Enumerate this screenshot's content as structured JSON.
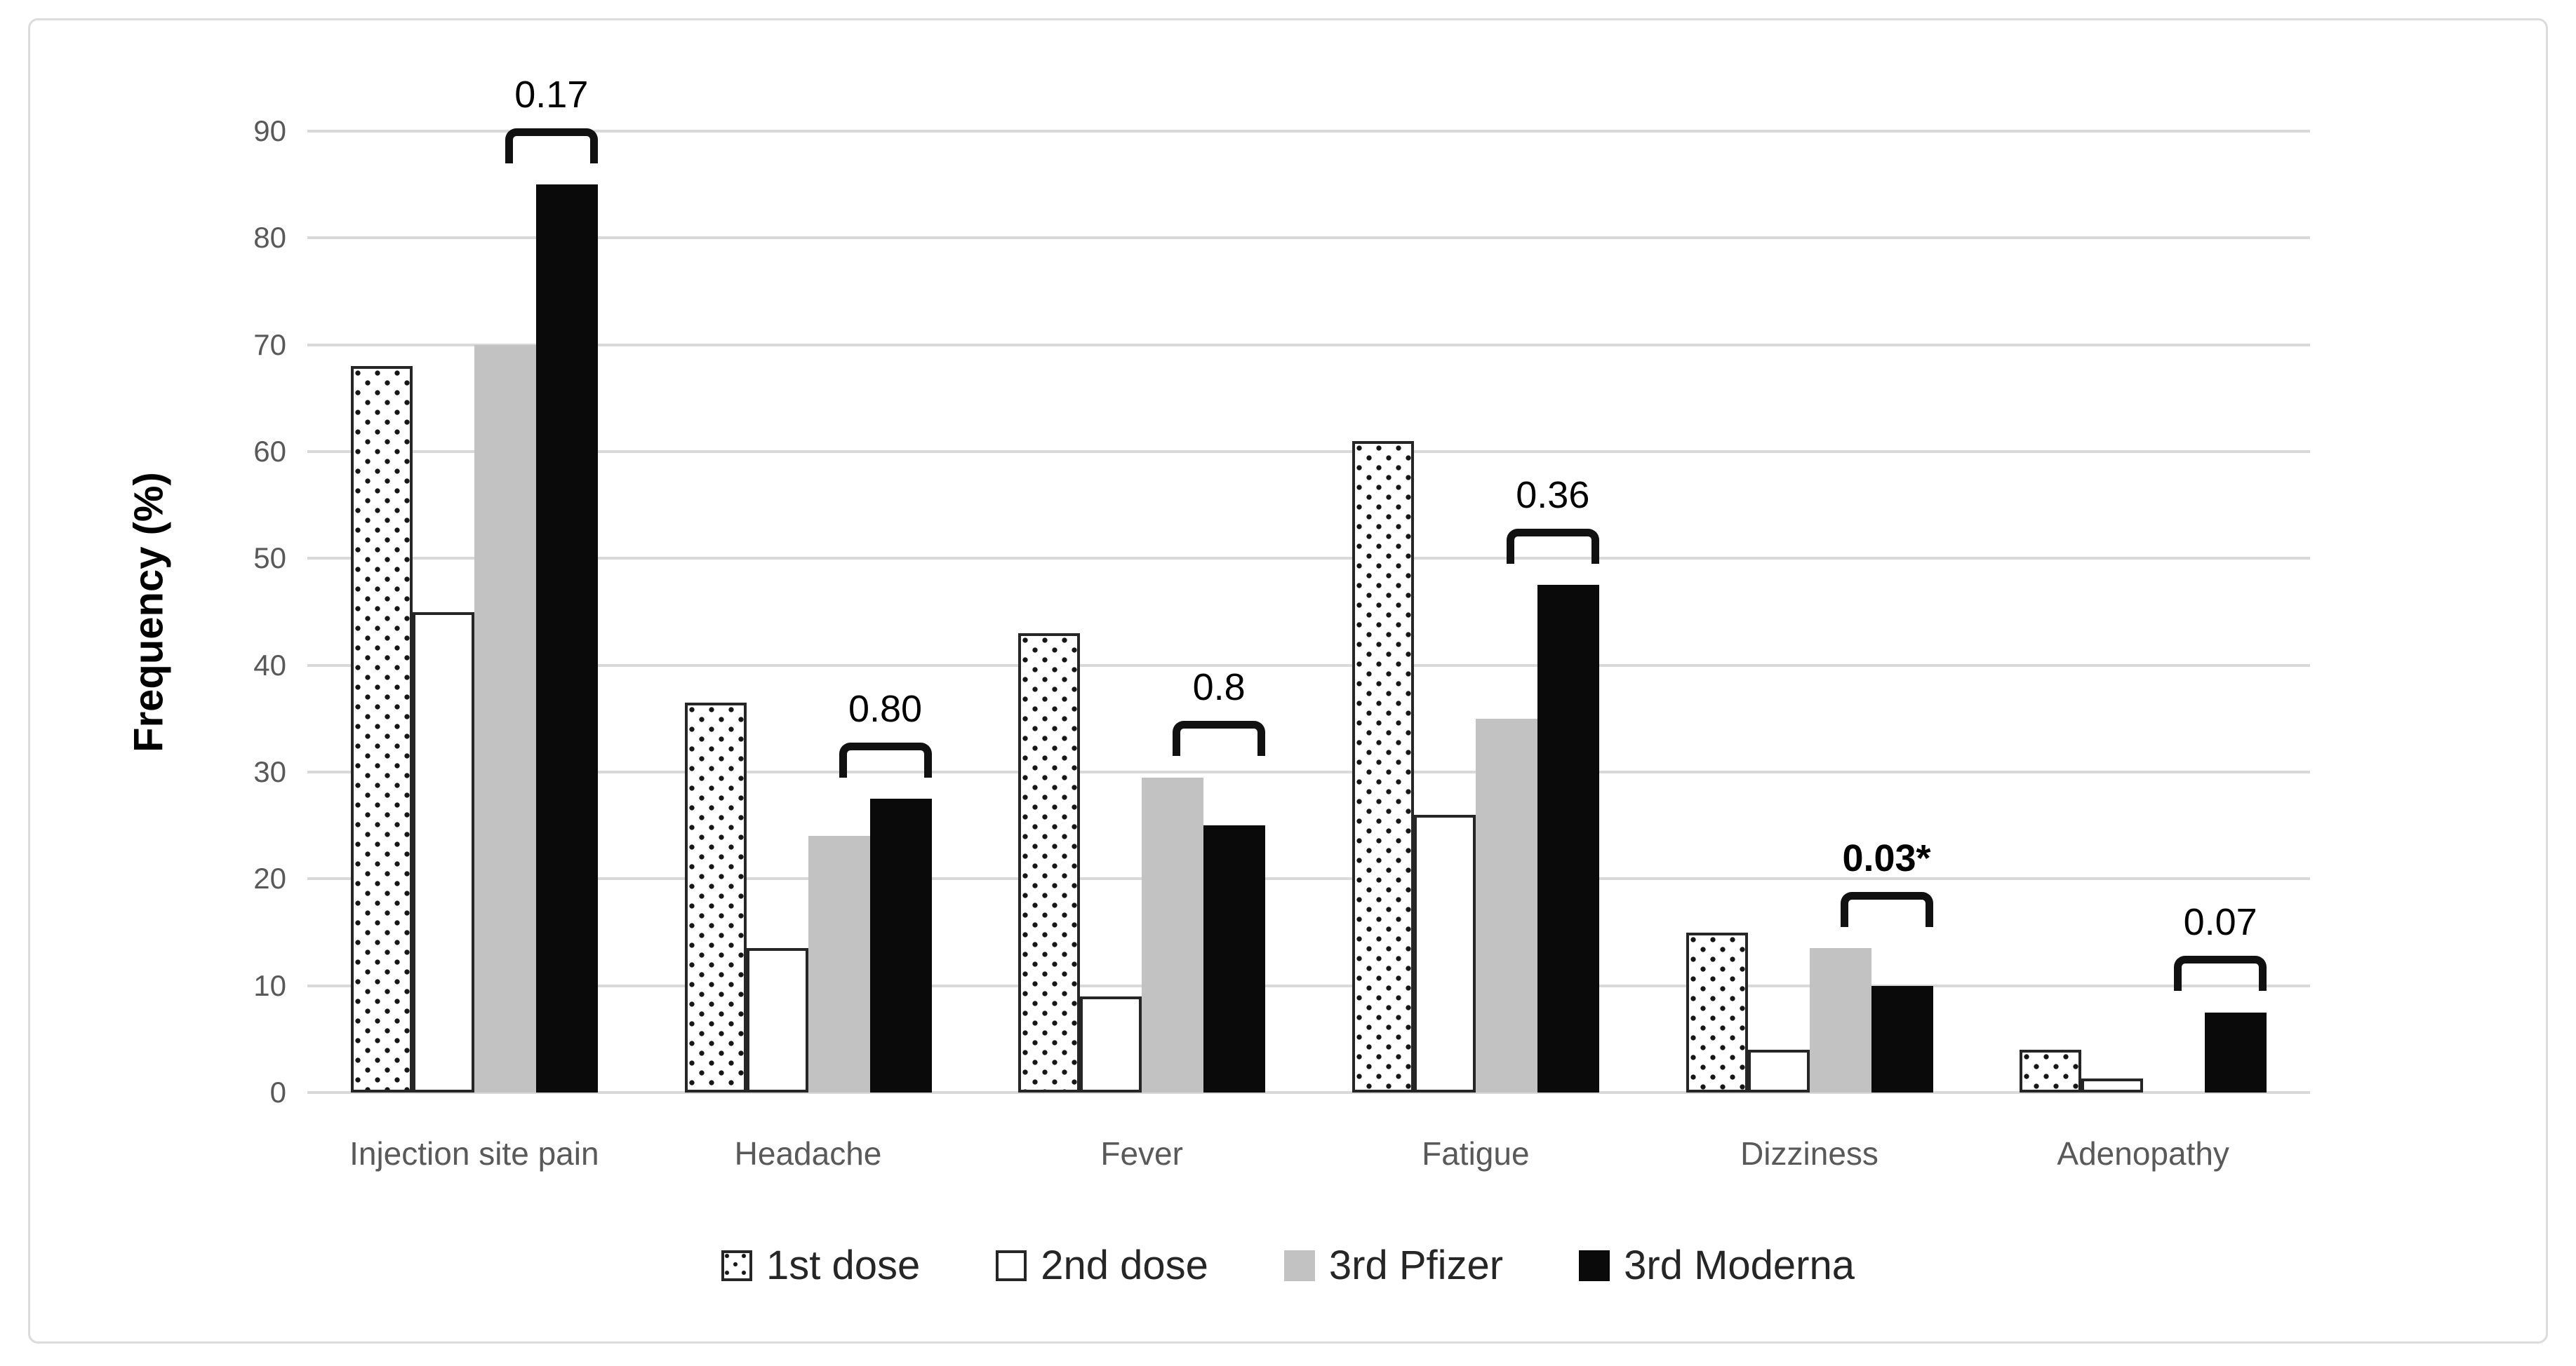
{
  "figure": {
    "background_color": "#ffffff",
    "frame_border_color": "#dcdcdc"
  },
  "chart_data": {
    "type": "bar",
    "title": "",
    "xlabel": "",
    "ylabel": "Frequency (%)",
    "ylim": [
      0,
      90
    ],
    "yticks": [
      0,
      10,
      20,
      30,
      40,
      50,
      60,
      70,
      80,
      90
    ],
    "grid": true,
    "gridline_color": "#d9d9d9",
    "legend_position": "bottom",
    "categories": [
      "Injection site pain",
      "Headache",
      "Fever",
      "Fatigue",
      "Dizziness",
      "Adenopathy"
    ],
    "series": [
      {
        "name": "1st dose",
        "style": "dotted",
        "fill": "white with black dot pattern",
        "values": [
          68,
          36.5,
          43,
          61,
          15,
          4
        ]
      },
      {
        "name": "2nd dose",
        "style": "white",
        "fill": "#ffffff",
        "values": [
          45,
          13.5,
          9,
          26,
          4,
          1.3
        ]
      },
      {
        "name": "3rd Pfizer",
        "style": "gray",
        "fill": "#c2c2c2",
        "values": [
          70,
          24,
          29.5,
          35,
          13.5,
          0
        ]
      },
      {
        "name": "3rd Moderna",
        "style": "black",
        "fill": "#0a0a0a",
        "values": [
          85,
          27.5,
          25,
          47.5,
          10,
          7.5
        ]
      }
    ],
    "p_values": [
      {
        "category": "Injection site pain",
        "label": "0.17",
        "bold": false
      },
      {
        "category": "Headache",
        "label": "0.80",
        "bold": false
      },
      {
        "category": "Fever",
        "label": "0.8",
        "bold": false
      },
      {
        "category": "Fatigue",
        "label": "0.36",
        "bold": false
      },
      {
        "category": "Dizziness",
        "label": "0.03*",
        "bold": true
      },
      {
        "category": "Adenopathy",
        "label": "0.07",
        "bold": false
      }
    ],
    "p_value_comparison": "3rd Pfizer vs 3rd Moderna",
    "annotation_note": "brackets span the 3rd Pfizer and 3rd Moderna bars"
  },
  "colors": {
    "axis_text": "#595959",
    "bracket": "#111111",
    "legend_text": "#262626"
  }
}
